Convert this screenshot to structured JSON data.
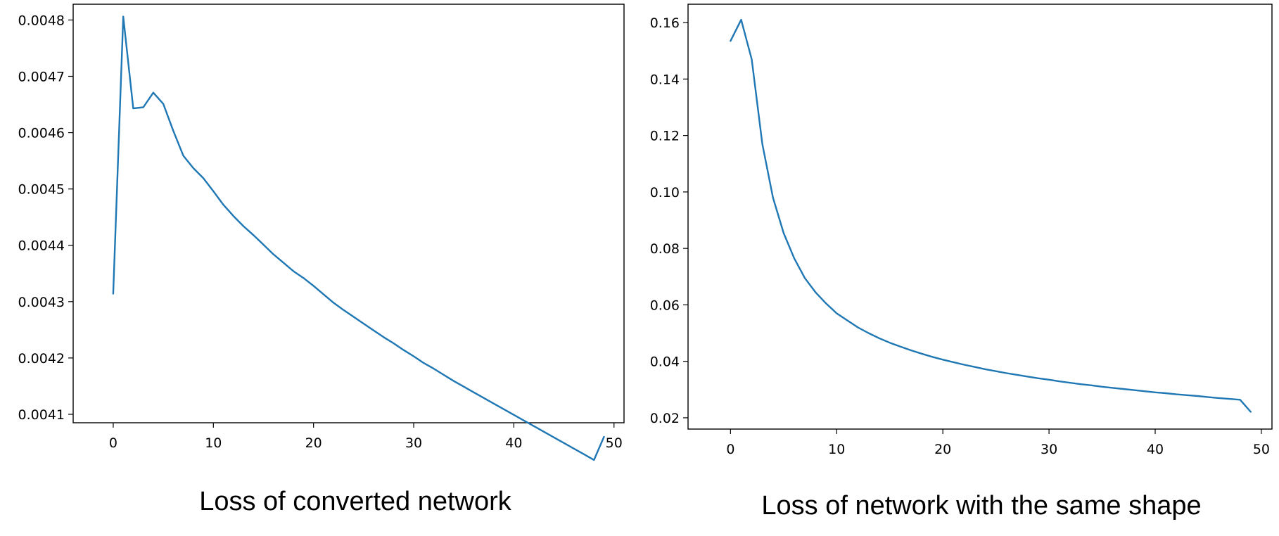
{
  "chart_data": [
    {
      "type": "line",
      "caption": "Loss of converted network",
      "xlim": [
        -4,
        51
      ],
      "ylim": [
        0.004085,
        0.004828
      ],
      "x_ticks": [
        0,
        10,
        20,
        30,
        40,
        50
      ],
      "y_ticks": [
        0.0041,
        0.0042,
        0.0043,
        0.0044,
        0.0045,
        0.0046,
        0.0047,
        0.0048
      ],
      "y_tick_labels": [
        "0.0041",
        "0.0042",
        "0.0043",
        "0.0044",
        "0.0045",
        "0.0046",
        "0.0047",
        "0.0048"
      ],
      "grid": false,
      "series": [
        {
          "color": "#1f77b4",
          "x": [
            0,
            1,
            2,
            3,
            4,
            5,
            6,
            7,
            8,
            9,
            10,
            11,
            12,
            13,
            14,
            15,
            16,
            17,
            18,
            19,
            20,
            21,
            22,
            23,
            24,
            25,
            26,
            27,
            28,
            29,
            30,
            31,
            32,
            33,
            34,
            35,
            36,
            37,
            38,
            39,
            40,
            41,
            42,
            43,
            44,
            45,
            46,
            47,
            48,
            49
          ],
          "y": [
            0.004314,
            0.004806,
            0.004643,
            0.004645,
            0.004671,
            0.004651,
            0.004603,
            0.004559,
            0.004537,
            0.004519,
            0.004496,
            0.004472,
            0.004452,
            0.004434,
            0.004418,
            0.004401,
            0.004384,
            0.004369,
            0.004354,
            0.004342,
            0.004328,
            0.004313,
            0.004298,
            0.004285,
            0.004273,
            0.004261,
            0.004249,
            0.004237,
            0.004226,
            0.004214,
            0.004203,
            0.004191,
            0.004181,
            0.00417,
            0.004159,
            0.004149,
            0.004139,
            0.004129,
            0.004119,
            0.004109,
            0.004099,
            0.004089,
            0.004079,
            0.004069,
            0.004059,
            0.004049,
            0.004039,
            0.004029,
            0.004019,
            0.00406
          ]
        }
      ]
    },
    {
      "type": "line",
      "caption": "Loss of network with the same shape",
      "xlim": [
        -4,
        51
      ],
      "ylim": [
        0.016,
        0.1665
      ],
      "x_ticks": [
        0,
        10,
        20,
        30,
        40,
        50
      ],
      "y_ticks": [
        0.02,
        0.04,
        0.06,
        0.08,
        0.1,
        0.12,
        0.14,
        0.16
      ],
      "y_tick_labels": [
        "0.02",
        "0.04",
        "0.06",
        "0.08",
        "0.10",
        "0.12",
        "0.14",
        "0.16"
      ],
      "grid": false,
      "series": [
        {
          "color": "#1f77b4",
          "x": [
            0,
            1,
            2,
            3,
            4,
            5,
            6,
            7,
            8,
            9,
            10,
            11,
            12,
            13,
            14,
            15,
            16,
            17,
            18,
            19,
            20,
            21,
            22,
            23,
            24,
            25,
            26,
            27,
            28,
            29,
            30,
            31,
            32,
            33,
            34,
            35,
            36,
            37,
            38,
            39,
            40,
            41,
            42,
            43,
            44,
            45,
            46,
            47,
            48,
            49
          ],
          "y": [
            0.1535,
            0.161,
            0.147,
            0.117,
            0.098,
            0.0855,
            0.0765,
            0.0695,
            0.0645,
            0.0605,
            0.057,
            0.0545,
            0.052,
            0.05,
            0.0482,
            0.0466,
            0.0452,
            0.0439,
            0.0427,
            0.0416,
            0.0406,
            0.0397,
            0.0388,
            0.038,
            0.0372,
            0.0365,
            0.0358,
            0.0352,
            0.0346,
            0.034,
            0.0335,
            0.0329,
            0.0324,
            0.0319,
            0.0315,
            0.031,
            0.0306,
            0.0302,
            0.0298,
            0.0294,
            0.029,
            0.0287,
            0.0283,
            0.028,
            0.0277,
            0.0273,
            0.027,
            0.0267,
            0.0264,
            0.0221
          ]
        }
      ]
    }
  ]
}
